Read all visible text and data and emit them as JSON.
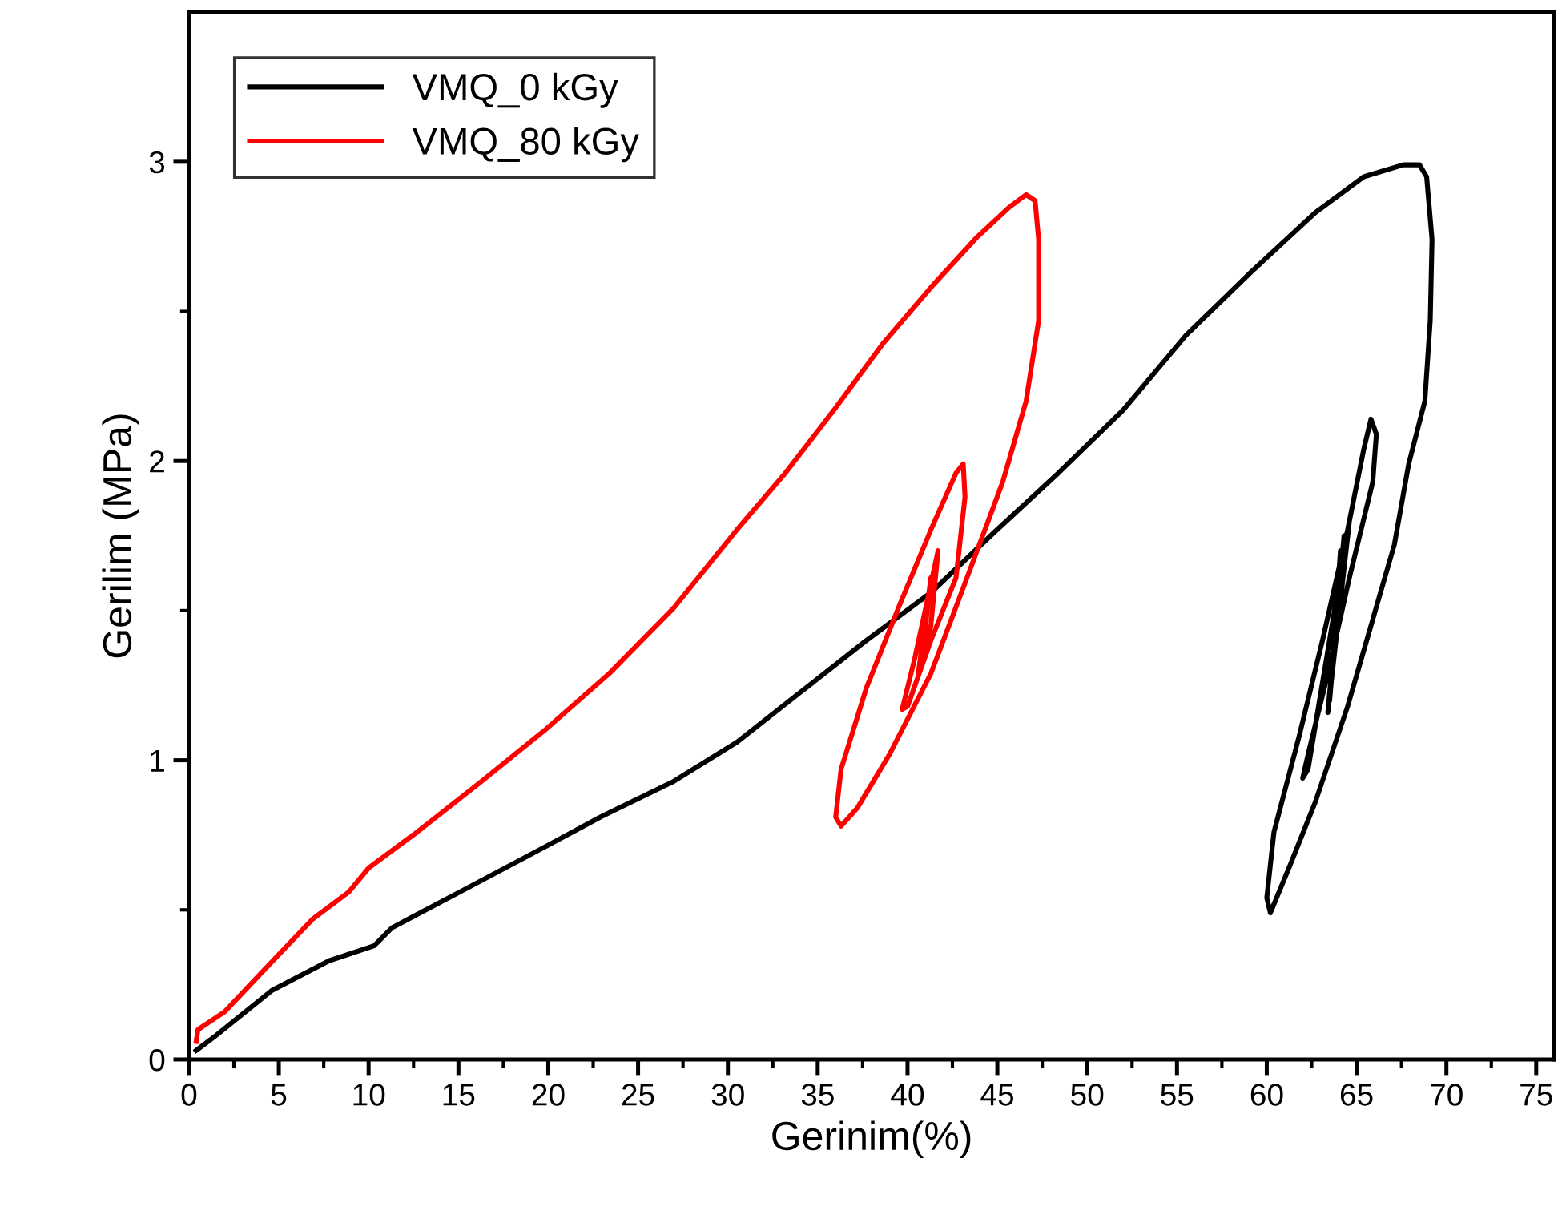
{
  "chart_data": {
    "type": "line",
    "xlabel": "Gerinim(%)",
    "ylabel": "Gerilim (MPa)",
    "xlim": [
      0,
      76
    ],
    "ylim": [
      0,
      3.5
    ],
    "xticks": [
      0,
      5,
      10,
      15,
      20,
      25,
      30,
      35,
      40,
      45,
      50,
      55,
      60,
      65,
      70,
      75
    ],
    "yticks": [
      0,
      1,
      2,
      3
    ],
    "grid": false,
    "legend": "top left",
    "marker": "none",
    "line_style": "solid",
    "series": [
      {
        "name": "VMQ_0 kGy",
        "color": "#000000",
        "x": [
          0.4,
          1.5,
          4.6,
          7.8,
          10.3,
          11.3,
          15.4,
          19.8,
          22.9,
          27,
          30.5,
          34.1,
          37.7,
          41.3,
          44.8,
          48.4,
          52,
          55.5,
          59.1,
          62.7,
          65.4,
          67.6,
          68.5,
          68.9,
          69.2,
          69.1,
          68.8,
          67.9,
          67.1,
          65.8,
          64.5,
          62.7,
          61.3,
          60.2,
          60,
          60.4,
          61.8,
          63.1,
          64.5,
          65.4,
          65.8,
          66.1,
          65.9,
          64.6,
          63.4,
          62.3,
          62,
          62.3,
          64.6,
          63.4,
          64.3,
          63.5,
          64.1,
          63.8
        ],
        "values": [
          0.03,
          0.08,
          0.23,
          0.33,
          0.38,
          0.44,
          0.57,
          0.71,
          0.81,
          0.93,
          1.06,
          1.23,
          1.4,
          1.56,
          1.76,
          1.96,
          2.17,
          2.42,
          2.63,
          2.83,
          2.95,
          2.99,
          2.99,
          2.95,
          2.74,
          2.47,
          2.2,
          1.99,
          1.72,
          1.45,
          1.18,
          0.86,
          0.65,
          0.49,
          0.54,
          0.76,
          1.08,
          1.4,
          1.77,
          2.04,
          2.14,
          2.09,
          1.93,
          1.61,
          1.29,
          1.02,
          0.94,
          0.97,
          1.8,
          1.16,
          1.75,
          1.2,
          1.7,
          1.4
        ]
      },
      {
        "name": "VMQ_80 kGy",
        "color": "#ff0000",
        "x": [
          0.4,
          0.5,
          2,
          4.2,
          6.9,
          8.9,
          10,
          12.7,
          16.3,
          19.8,
          23.4,
          27,
          30.5,
          33.2,
          35.9,
          38.6,
          41.3,
          43.9,
          45.7,
          46.6,
          47.1,
          47.3,
          47.3,
          46.6,
          45.3,
          43,
          41.3,
          39,
          37.2,
          36.3,
          36,
          36.3,
          37.7,
          39.5,
          41.3,
          42.7,
          43.1,
          43.2,
          42.7,
          41.3,
          40,
          39.7,
          40.4,
          41.7,
          41.3,
          40.6,
          41.3,
          40.9
        ],
        "values": [
          0.06,
          0.1,
          0.16,
          0.3,
          0.47,
          0.56,
          0.64,
          0.76,
          0.93,
          1.1,
          1.29,
          1.51,
          1.77,
          1.96,
          2.17,
          2.39,
          2.58,
          2.75,
          2.85,
          2.89,
          2.87,
          2.74,
          2.47,
          2.2,
          1.93,
          1.56,
          1.29,
          1.02,
          0.84,
          0.78,
          0.81,
          0.97,
          1.24,
          1.51,
          1.77,
          1.96,
          1.99,
          1.88,
          1.61,
          1.4,
          1.18,
          1.17,
          1.34,
          1.7,
          1.45,
          1.29,
          1.61,
          1.39
        ]
      }
    ]
  }
}
